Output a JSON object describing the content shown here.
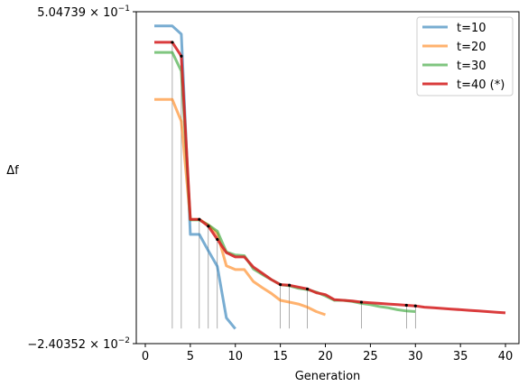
{
  "chart_data": {
    "type": "line",
    "xlabel": "Generation",
    "ylabel": "Δf",
    "xlim": [
      -1,
      41.5
    ],
    "ylim": [
      -0.0240352,
      0.504739
    ],
    "x_ticks": [
      0,
      5,
      10,
      15,
      20,
      25,
      30,
      35,
      40
    ],
    "y_ticks": [
      {
        "value": 0.504739,
        "mantissa": "5.04739",
        "base": "10",
        "exp": "−1",
        "prefix": ""
      },
      {
        "value": -0.0240352,
        "mantissa": "2.40352",
        "base": "10",
        "exp": "−2",
        "prefix": "−"
      }
    ],
    "legend": {
      "position": "top-right"
    },
    "series": [
      {
        "name": "t=10",
        "color": "#1f77b4",
        "x": [
          1,
          2,
          3,
          4,
          5,
          6,
          7,
          8,
          9,
          10
        ],
        "y": [
          0.482,
          0.482,
          0.482,
          0.469,
          0.15,
          0.15,
          0.124,
          0.099,
          0.017,
          -0.0005
        ]
      },
      {
        "name": "t=20",
        "color": "#ff7f0e",
        "x": [
          1,
          2,
          3,
          4,
          5,
          6,
          7,
          8,
          9,
          10,
          11,
          12,
          13,
          14,
          15,
          16,
          17,
          18,
          19,
          20
        ],
        "y": [
          0.365,
          0.365,
          0.365,
          0.33,
          0.174,
          0.174,
          0.165,
          0.151,
          0.1,
          0.094,
          0.094,
          0.075,
          0.065,
          0.056,
          0.045,
          0.042,
          0.039,
          0.034,
          0.027,
          0.022
        ]
      },
      {
        "name": "t=30",
        "color": "#2ca02c",
        "x": [
          1,
          2,
          3,
          4,
          5,
          6,
          7,
          8,
          9,
          10,
          11,
          12,
          13,
          14,
          15,
          16,
          17,
          18,
          19,
          20,
          21,
          22,
          23,
          24,
          25,
          26,
          27,
          28,
          29,
          30
        ],
        "y": [
          0.44,
          0.44,
          0.44,
          0.41,
          0.173,
          0.173,
          0.165,
          0.155,
          0.122,
          0.117,
          0.116,
          0.095,
          0.086,
          0.078,
          0.07,
          0.068,
          0.064,
          0.062,
          0.058,
          0.052,
          0.045,
          0.045,
          0.043,
          0.04,
          0.038,
          0.035,
          0.033,
          0.03,
          0.028,
          0.027
        ]
      },
      {
        "name": "t=40 (*)",
        "color": "#d62728",
        "x": [
          1,
          2,
          3,
          4,
          5,
          6,
          7,
          8,
          9,
          10,
          11,
          12,
          13,
          14,
          15,
          16,
          17,
          18,
          19,
          20,
          21,
          22,
          23,
          24,
          25,
          26,
          27,
          28,
          29,
          30,
          31,
          32,
          33,
          34,
          35,
          36,
          37,
          38,
          39,
          40
        ],
        "y": [
          0.456,
          0.456,
          0.456,
          0.434,
          0.174,
          0.174,
          0.163,
          0.142,
          0.121,
          0.114,
          0.114,
          0.098,
          0.088,
          0.078,
          0.07,
          0.069,
          0.066,
          0.063,
          0.057,
          0.054,
          0.046,
          0.045,
          0.044,
          0.042,
          0.041,
          0.04,
          0.039,
          0.038,
          0.037,
          0.036,
          0.034,
          0.033,
          0.032,
          0.031,
          0.03,
          0.029,
          0.028,
          0.027,
          0.026,
          0.025
        ]
      }
    ],
    "marker_generations": [
      3,
      4,
      6,
      7,
      8,
      15,
      16,
      18,
      24,
      29,
      30
    ],
    "marker_series": "t=40 (*)",
    "marker_baseline": 0.0
  }
}
